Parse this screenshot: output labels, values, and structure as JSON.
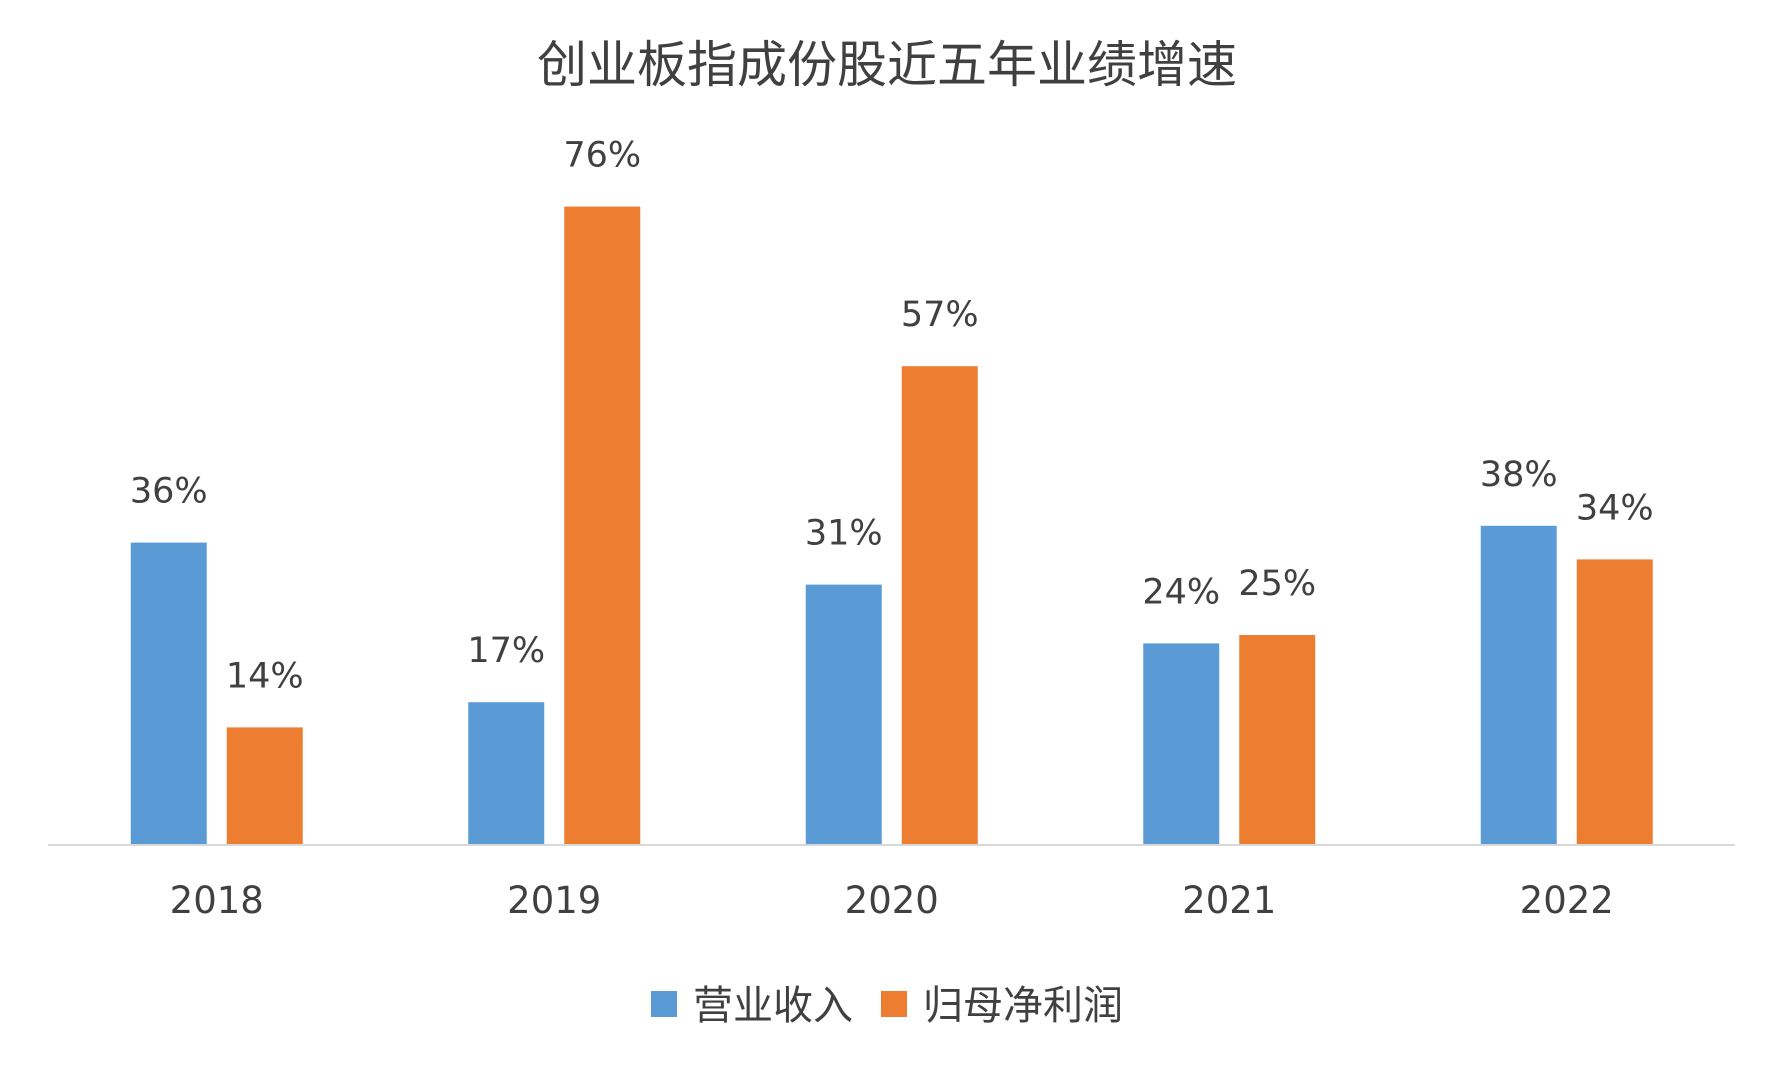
{
  "chart_data": {
    "type": "bar",
    "title": "创业板指成份股近五年业绩增速",
    "xlabel": "",
    "ylabel": "",
    "categories": [
      "2018",
      "2019",
      "2020",
      "2021",
      "2022"
    ],
    "series": [
      {
        "name": "营业收入",
        "values": [
          36,
          17,
          31,
          24,
          38
        ],
        "labels": [
          "36%",
          "17%",
          "31%",
          "24%",
          "38%"
        ],
        "color": "#5B9BD5"
      },
      {
        "name": "归母净利润",
        "values": [
          14,
          76,
          57,
          25,
          34
        ],
        "labels": [
          "14%",
          "76%",
          "57%",
          "25%",
          "34%"
        ],
        "color": "#ED7D31"
      }
    ],
    "ylim": [
      0,
      80
    ],
    "unit": "%",
    "grid": false,
    "legend_position": "bottom",
    "axis_color": "#D9D9D9"
  }
}
